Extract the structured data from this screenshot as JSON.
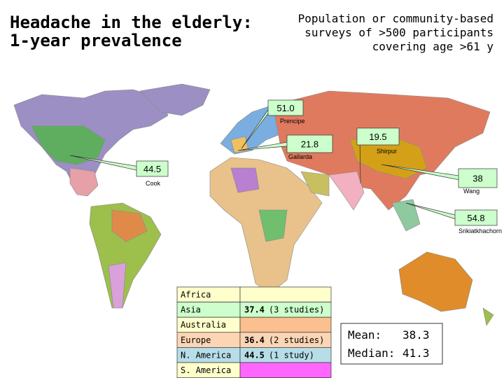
{
  "header": {
    "title": [
      "Headache in the elderly:",
      "1-year prevalence"
    ],
    "subtitle": [
      "Population or community-based",
      "surveys of >500 participants",
      "covering age >61 y"
    ]
  },
  "callouts": [
    {
      "value": "51.0",
      "author": "Prencipe"
    },
    {
      "value": "21.8",
      "author": "Gallarda"
    },
    {
      "value": "19.5",
      "author": "Shirpur"
    },
    {
      "value": "44.5",
      "author": "Cook"
    },
    {
      "value": "38",
      "author": "Wang"
    },
    {
      "value": "54.8",
      "author": "Srikiatkhachorn"
    }
  ],
  "table": {
    "rows": [
      {
        "region": "Africa"
      },
      {
        "region": "Asia",
        "value": "37.4",
        "studies": "(3 studies)"
      },
      {
        "region": "Australia"
      },
      {
        "region": "Europe",
        "value": "36.4",
        "studies": "(2 studies)"
      },
      {
        "region": "N. America",
        "value": "44.5",
        "studies": "(1 study)"
      },
      {
        "region": "S. America"
      }
    ]
  },
  "summary": {
    "mean_label": "Mean:",
    "mean": "38.3",
    "median_label": "Median:",
    "median": "41.3"
  }
}
